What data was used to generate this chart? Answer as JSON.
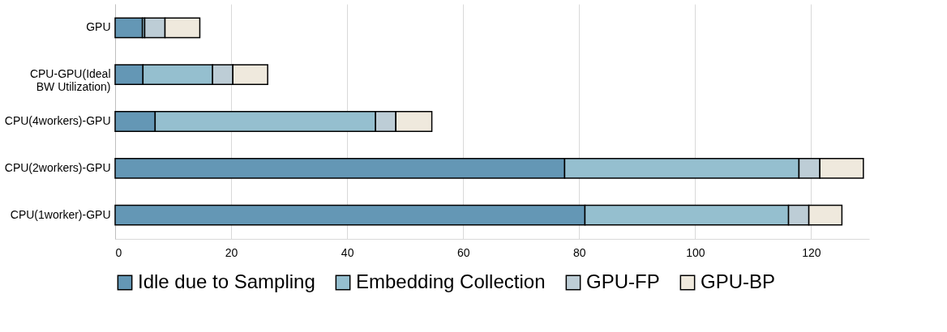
{
  "chart_data": {
    "type": "bar",
    "orientation": "horizontal",
    "stacked": true,
    "categories": [
      "GPU",
      "CPU-GPU(Ideal\nBW Utilization)",
      "CPU(4workers)-GPU",
      "CPU(2workers)-GPU",
      "CPU(1worker)-GPU"
    ],
    "series": [
      {
        "name": "Idle due to Sampling",
        "color": "#6497b5",
        "values": [
          4.7,
          4.8,
          6.9,
          77.5,
          81.0
        ]
      },
      {
        "name": "Embedding Collection",
        "color": "#95bfcf",
        "values": [
          0.4,
          12.0,
          38.0,
          40.4,
          35.1
        ]
      },
      {
        "name": "GPU-FP",
        "color": "#bdcdd6",
        "values": [
          3.5,
          3.5,
          3.5,
          3.6,
          3.5
        ]
      },
      {
        "name": "GPU-BP",
        "color": "#efe9dd",
        "values": [
          6.0,
          6.0,
          6.2,
          7.5,
          5.7
        ]
      }
    ],
    "xlim": [
      0,
      130
    ],
    "xticks": [
      0,
      20,
      40,
      60,
      80,
      100,
      120
    ],
    "grid": "x",
    "legend": "bottom"
  }
}
